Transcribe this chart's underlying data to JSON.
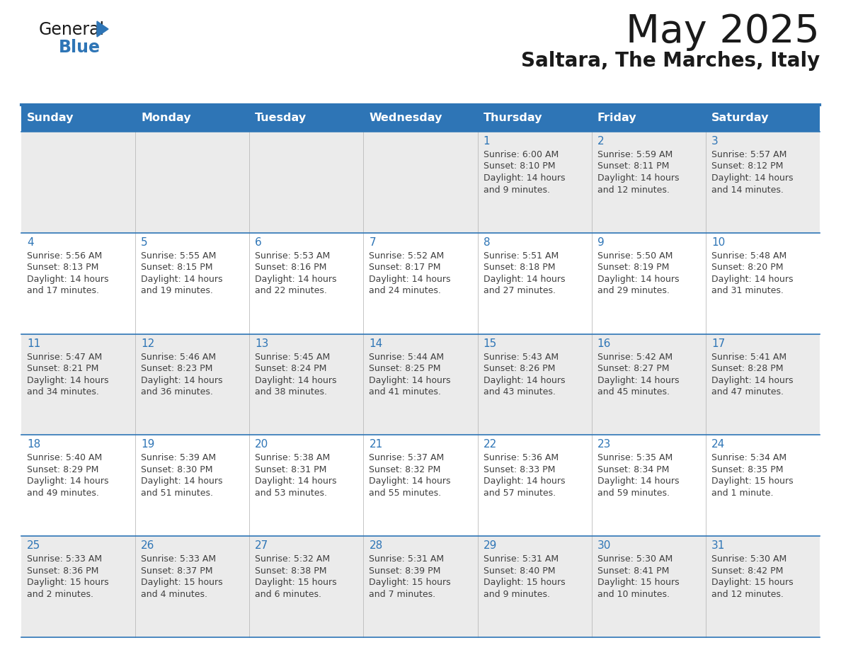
{
  "title": "May 2025",
  "subtitle": "Saltara, The Marches, Italy",
  "header_bg_color": "#2E75B6",
  "header_text_color": "#FFFFFF",
  "day_names": [
    "Sunday",
    "Monday",
    "Tuesday",
    "Wednesday",
    "Thursday",
    "Friday",
    "Saturday"
  ],
  "row1_bg": "#EBEBEB",
  "row2_bg": "#FFFFFF",
  "row3_bg": "#EBEBEB",
  "row4_bg": "#FFFFFF",
  "row5_bg": "#EBEBEB",
  "border_color": "#2E75B6",
  "cell_text_color": "#404040",
  "day_num_color": "#2E75B6",
  "calendar_data": [
    [
      {
        "day": 0
      },
      {
        "day": 0
      },
      {
        "day": 0
      },
      {
        "day": 0
      },
      {
        "day": 1,
        "sunrise": "6:00 AM",
        "sunset": "8:10 PM",
        "daylight": "14 hours",
        "daylight2": "and 9 minutes."
      },
      {
        "day": 2,
        "sunrise": "5:59 AM",
        "sunset": "8:11 PM",
        "daylight": "14 hours",
        "daylight2": "and 12 minutes."
      },
      {
        "day": 3,
        "sunrise": "5:57 AM",
        "sunset": "8:12 PM",
        "daylight": "14 hours",
        "daylight2": "and 14 minutes."
      }
    ],
    [
      {
        "day": 4,
        "sunrise": "5:56 AM",
        "sunset": "8:13 PM",
        "daylight": "14 hours",
        "daylight2": "and 17 minutes."
      },
      {
        "day": 5,
        "sunrise": "5:55 AM",
        "sunset": "8:15 PM",
        "daylight": "14 hours",
        "daylight2": "and 19 minutes."
      },
      {
        "day": 6,
        "sunrise": "5:53 AM",
        "sunset": "8:16 PM",
        "daylight": "14 hours",
        "daylight2": "and 22 minutes."
      },
      {
        "day": 7,
        "sunrise": "5:52 AM",
        "sunset": "8:17 PM",
        "daylight": "14 hours",
        "daylight2": "and 24 minutes."
      },
      {
        "day": 8,
        "sunrise": "5:51 AM",
        "sunset": "8:18 PM",
        "daylight": "14 hours",
        "daylight2": "and 27 minutes."
      },
      {
        "day": 9,
        "sunrise": "5:50 AM",
        "sunset": "8:19 PM",
        "daylight": "14 hours",
        "daylight2": "and 29 minutes."
      },
      {
        "day": 10,
        "sunrise": "5:48 AM",
        "sunset": "8:20 PM",
        "daylight": "14 hours",
        "daylight2": "and 31 minutes."
      }
    ],
    [
      {
        "day": 11,
        "sunrise": "5:47 AM",
        "sunset": "8:21 PM",
        "daylight": "14 hours",
        "daylight2": "and 34 minutes."
      },
      {
        "day": 12,
        "sunrise": "5:46 AM",
        "sunset": "8:23 PM",
        "daylight": "14 hours",
        "daylight2": "and 36 minutes."
      },
      {
        "day": 13,
        "sunrise": "5:45 AM",
        "sunset": "8:24 PM",
        "daylight": "14 hours",
        "daylight2": "and 38 minutes."
      },
      {
        "day": 14,
        "sunrise": "5:44 AM",
        "sunset": "8:25 PM",
        "daylight": "14 hours",
        "daylight2": "and 41 minutes."
      },
      {
        "day": 15,
        "sunrise": "5:43 AM",
        "sunset": "8:26 PM",
        "daylight": "14 hours",
        "daylight2": "and 43 minutes."
      },
      {
        "day": 16,
        "sunrise": "5:42 AM",
        "sunset": "8:27 PM",
        "daylight": "14 hours",
        "daylight2": "and 45 minutes."
      },
      {
        "day": 17,
        "sunrise": "5:41 AM",
        "sunset": "8:28 PM",
        "daylight": "14 hours",
        "daylight2": "and 47 minutes."
      }
    ],
    [
      {
        "day": 18,
        "sunrise": "5:40 AM",
        "sunset": "8:29 PM",
        "daylight": "14 hours",
        "daylight2": "and 49 minutes."
      },
      {
        "day": 19,
        "sunrise": "5:39 AM",
        "sunset": "8:30 PM",
        "daylight": "14 hours",
        "daylight2": "and 51 minutes."
      },
      {
        "day": 20,
        "sunrise": "5:38 AM",
        "sunset": "8:31 PM",
        "daylight": "14 hours",
        "daylight2": "and 53 minutes."
      },
      {
        "day": 21,
        "sunrise": "5:37 AM",
        "sunset": "8:32 PM",
        "daylight": "14 hours",
        "daylight2": "and 55 minutes."
      },
      {
        "day": 22,
        "sunrise": "5:36 AM",
        "sunset": "8:33 PM",
        "daylight": "14 hours",
        "daylight2": "and 57 minutes."
      },
      {
        "day": 23,
        "sunrise": "5:35 AM",
        "sunset": "8:34 PM",
        "daylight": "14 hours",
        "daylight2": "and 59 minutes."
      },
      {
        "day": 24,
        "sunrise": "5:34 AM",
        "sunset": "8:35 PM",
        "daylight": "15 hours",
        "daylight2": "and 1 minute."
      }
    ],
    [
      {
        "day": 25,
        "sunrise": "5:33 AM",
        "sunset": "8:36 PM",
        "daylight": "15 hours",
        "daylight2": "and 2 minutes."
      },
      {
        "day": 26,
        "sunrise": "5:33 AM",
        "sunset": "8:37 PM",
        "daylight": "15 hours",
        "daylight2": "and 4 minutes."
      },
      {
        "day": 27,
        "sunrise": "5:32 AM",
        "sunset": "8:38 PM",
        "daylight": "15 hours",
        "daylight2": "and 6 minutes."
      },
      {
        "day": 28,
        "sunrise": "5:31 AM",
        "sunset": "8:39 PM",
        "daylight": "15 hours",
        "daylight2": "and 7 minutes."
      },
      {
        "day": 29,
        "sunrise": "5:31 AM",
        "sunset": "8:40 PM",
        "daylight": "15 hours",
        "daylight2": "and 9 minutes."
      },
      {
        "day": 30,
        "sunrise": "5:30 AM",
        "sunset": "8:41 PM",
        "daylight": "15 hours",
        "daylight2": "and 10 minutes."
      },
      {
        "day": 31,
        "sunrise": "5:30 AM",
        "sunset": "8:42 PM",
        "daylight": "15 hours",
        "daylight2": "and 12 minutes."
      }
    ]
  ],
  "row_bg_colors": [
    "#EBEBEB",
    "#FFFFFF",
    "#EBEBEB",
    "#FFFFFF",
    "#EBEBEB"
  ]
}
